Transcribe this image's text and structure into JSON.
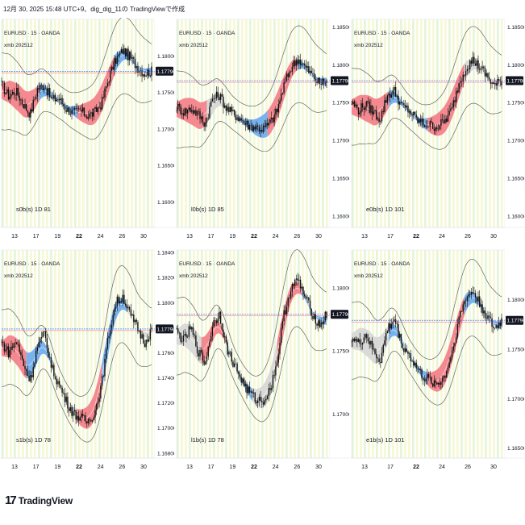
{
  "header": {
    "text": "12月 30, 2025 15:48 UTC+9、dig_dig_11の TradingViewで作成"
  },
  "footer": {
    "logo_mark": "17",
    "logo_text": "TradingView"
  },
  "colors": {
    "bg_band_yellow": "#f6f8d6",
    "bg_band_green": "#e6f5d8",
    "red_band": "#f47c86",
    "blue_band": "#6aaaf0",
    "gray_band": "#d6d6d6",
    "envelope": "#666666",
    "candle": "#111111",
    "price_line": "#2962ff",
    "price_tag": "#131722"
  },
  "chart_data": [
    {
      "type": "line",
      "panel": "top-left",
      "title": "EURUSD · 15 · OANDA",
      "subtitle": "xmb 202512",
      "label": "s0b(s) 1D 81",
      "x_ticks": [
        "13",
        "17",
        "19",
        "22",
        "24",
        "26",
        "30"
      ],
      "y_ticks": [
        "1.18000",
        "1.17500",
        "1.17000",
        "1.16500",
        "1.16000"
      ],
      "ylim": [
        1.1565,
        1.185
      ],
      "current_price": "1.17790",
      "bands": [
        "red",
        "blue",
        "red",
        "blue"
      ],
      "price": [
        1.176,
        1.1745,
        1.1752,
        1.1735,
        1.172,
        1.1755,
        1.176,
        1.174,
        1.1742,
        1.1728,
        1.1722,
        1.1725,
        1.1718,
        1.1722,
        1.1735,
        1.177,
        1.1795,
        1.1808,
        1.1798,
        1.1785,
        1.1776,
        1.1779
      ]
    },
    {
      "type": "line",
      "panel": "top-middle",
      "title": "EURUSD · 15 · OANDA",
      "subtitle": "xmb 202512",
      "label": "l0b(s) 1D 85",
      "x_ticks": [
        "13",
        "17",
        "19",
        "22",
        "24",
        "26",
        "30"
      ],
      "y_ticks": [
        "1.18500",
        "1.18000",
        "1.17500",
        "1.17000",
        "1.16500",
        "1.16000"
      ],
      "ylim": [
        1.1585,
        1.186
      ],
      "current_price": "1.17790",
      "bands": [
        "red",
        "gray",
        "blue",
        "red",
        "blue"
      ],
      "price": [
        1.1745,
        1.1738,
        1.1742,
        1.1735,
        1.1722,
        1.1755,
        1.176,
        1.1742,
        1.1735,
        1.1728,
        1.172,
        1.1718,
        1.1715,
        1.1722,
        1.1738,
        1.1772,
        1.1796,
        1.1808,
        1.1797,
        1.1786,
        1.1775,
        1.1779
      ]
    },
    {
      "type": "line",
      "panel": "top-right",
      "title": "EURUSD · 15 · OANDA",
      "subtitle": "xmb 202512",
      "label": "e0b(s) 1D 101",
      "x_ticks": [
        "13",
        "17",
        "22",
        "24",
        "26",
        "30"
      ],
      "y_ticks": [
        "1.18500",
        "1.18000",
        "1.17500",
        "1.17000",
        "1.16500",
        "1.16000"
      ],
      "ylim": [
        1.1585,
        1.186
      ],
      "current_price": "1.17790",
      "bands": [
        "red",
        "blue",
        "red",
        "gray"
      ],
      "price": [
        1.175,
        1.174,
        1.1748,
        1.1738,
        1.1728,
        1.176,
        1.1765,
        1.1745,
        1.174,
        1.1728,
        1.1722,
        1.172,
        1.1718,
        1.1725,
        1.174,
        1.1775,
        1.1797,
        1.1806,
        1.1796,
        1.1784,
        1.1772,
        1.1779
      ]
    },
    {
      "type": "line",
      "panel": "bottom-left",
      "title": "EURUSD · 15 · OANDA",
      "subtitle": "xmb 202512",
      "label": "s1b(s) 1D 78",
      "x_ticks": [
        "13",
        "17",
        "19",
        "22",
        "24",
        "26",
        "30"
      ],
      "y_ticks": [
        "1.18400",
        "1.18200",
        "1.18000",
        "1.17800",
        "1.17600",
        "1.17400",
        "1.17200",
        "1.17000",
        "1.16800"
      ],
      "ylim": [
        1.1676,
        1.1842
      ],
      "current_price": "1.17790",
      "bands": [
        "red",
        "blue",
        "gray",
        "red",
        "blue",
        "gray"
      ],
      "price": [
        1.1768,
        1.176,
        1.177,
        1.1752,
        1.1738,
        1.1765,
        1.1775,
        1.1748,
        1.1735,
        1.1722,
        1.1712,
        1.1708,
        1.1705,
        1.1712,
        1.1735,
        1.1775,
        1.18,
        1.1805,
        1.179,
        1.178,
        1.1768,
        1.1779
      ]
    },
    {
      "type": "line",
      "panel": "bottom-middle",
      "title": "EURUSD · 15 · OANDA",
      "subtitle": "xmb 202512",
      "label": "l1b(s) 1D 78",
      "x_ticks": [
        "13",
        "17",
        "19",
        "22",
        "24",
        "26",
        "30"
      ],
      "y_ticks": [
        "1.18000",
        "1.17500",
        "1.17000"
      ],
      "ylim": [
        1.1665,
        1.183
      ],
      "current_price": "1.17790",
      "bands": [
        "gray",
        "red",
        "blue",
        "gray",
        "red",
        "blue"
      ],
      "price": [
        1.1765,
        1.1758,
        1.1768,
        1.175,
        1.174,
        1.177,
        1.178,
        1.1752,
        1.174,
        1.1728,
        1.1718,
        1.1712,
        1.171,
        1.1718,
        1.174,
        1.1778,
        1.18,
        1.1806,
        1.1792,
        1.178,
        1.177,
        1.1779
      ]
    },
    {
      "type": "line",
      "panel": "bottom-right",
      "title": "EURUSD · 15 · OANDA",
      "subtitle": "xmb 202512",
      "label": "e1b(s) 1D 101",
      "x_ticks": [
        "13",
        "17",
        "22",
        "24",
        "26",
        "30"
      ],
      "y_ticks": [
        "1.18000",
        "1.17500",
        "1.17000",
        "1.16500"
      ],
      "ylim": [
        1.164,
        1.185
      ],
      "current_price": "1.17790",
      "bands": [
        "gray",
        "blue",
        "red",
        "blue"
      ],
      "price": [
        1.1762,
        1.1755,
        1.1765,
        1.1748,
        1.1738,
        1.177,
        1.178,
        1.1755,
        1.1745,
        1.1732,
        1.1722,
        1.1718,
        1.1715,
        1.1722,
        1.1745,
        1.178,
        1.1802,
        1.1808,
        1.1795,
        1.1782,
        1.177,
        1.1779
      ]
    }
  ]
}
